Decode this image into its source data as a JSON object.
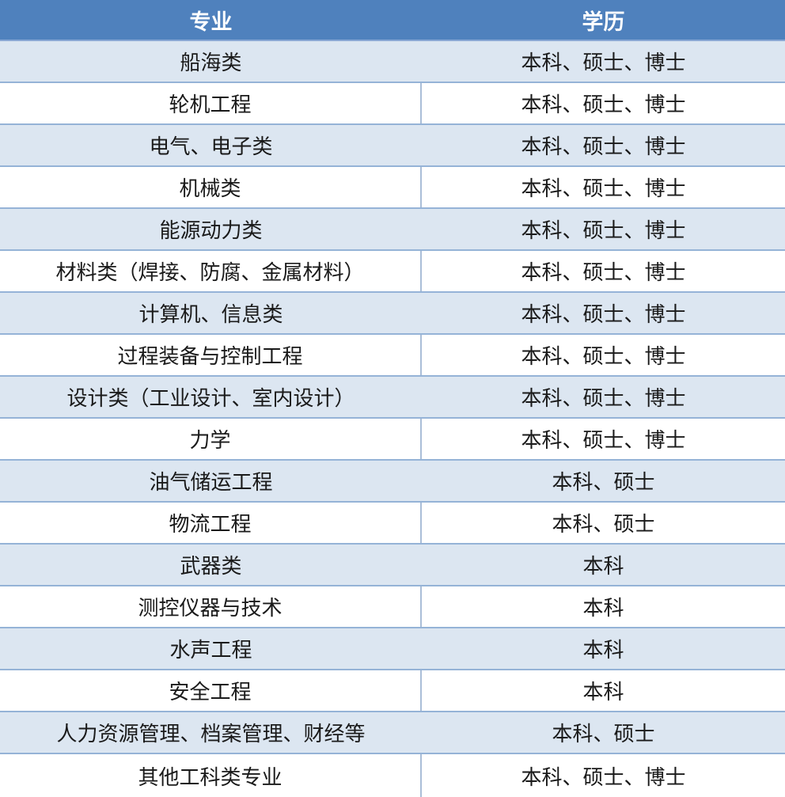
{
  "colors": {
    "header_bg": "#4F81BD",
    "header_text": "#FFFFFF",
    "band_row_bg": "#DCE6F1",
    "plain_row_bg": "#FFFFFF",
    "row_border": "#95B3D7",
    "body_text": "#1A1A1A"
  },
  "table": {
    "header": {
      "major": "专业",
      "degrees": "学历"
    },
    "rows": [
      {
        "major": "船海类",
        "degrees": "本科、硕士、博士"
      },
      {
        "major": "轮机工程",
        "degrees": "本科、硕士、博士"
      },
      {
        "major": "电气、电子类",
        "degrees": "本科、硕士、博士"
      },
      {
        "major": "机械类",
        "degrees": "本科、硕士、博士"
      },
      {
        "major": "能源动力类",
        "degrees": "本科、硕士、博士"
      },
      {
        "major": "材料类（焊接、防腐、金属材料）",
        "degrees": "本科、硕士、博士"
      },
      {
        "major": "计算机、信息类",
        "degrees": "本科、硕士、博士"
      },
      {
        "major": "过程装备与控制工程",
        "degrees": "本科、硕士、博士"
      },
      {
        "major": "设计类（工业设计、室内设计）",
        "degrees": "本科、硕士、博士"
      },
      {
        "major": "力学",
        "degrees": "本科、硕士、博士"
      },
      {
        "major": "油气储运工程",
        "degrees": "本科、硕士"
      },
      {
        "major": "物流工程",
        "degrees": "本科、硕士"
      },
      {
        "major": "武器类",
        "degrees": "本科"
      },
      {
        "major": "测控仪器与技术",
        "degrees": "本科"
      },
      {
        "major": "水声工程",
        "degrees": "本科"
      },
      {
        "major": "安全工程",
        "degrees": "本科"
      },
      {
        "major": "人力资源管理、档案管理、财经等",
        "degrees": "本科、硕士"
      },
      {
        "major": "其他工科类专业",
        "degrees": "本科、硕士、博士"
      }
    ]
  }
}
